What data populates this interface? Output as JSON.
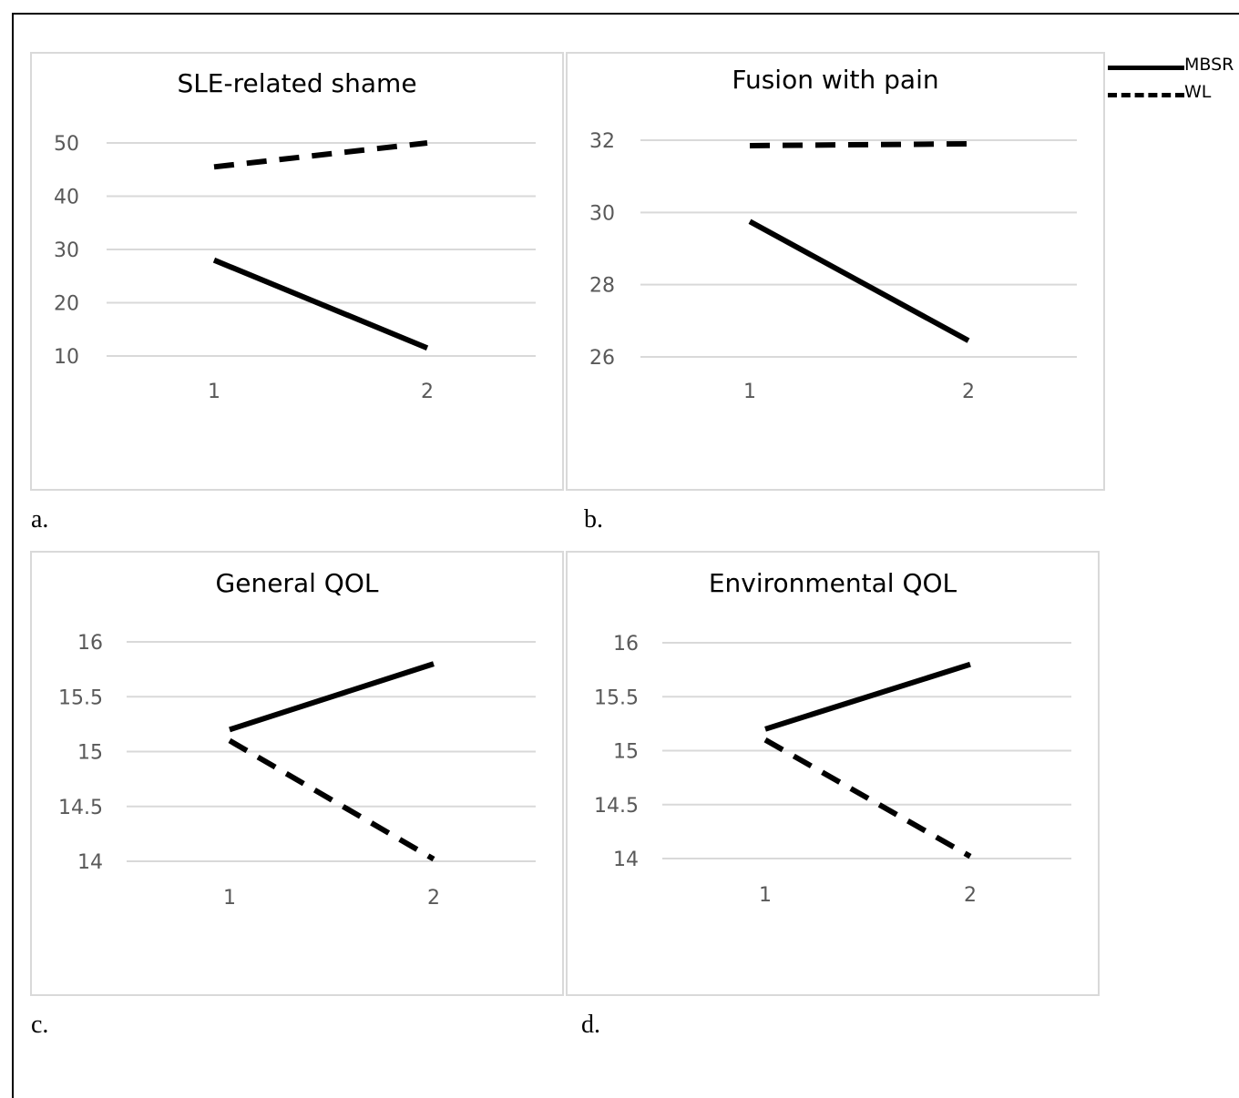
{
  "legend": [
    {
      "name": "MBSR",
      "style": "solid"
    },
    {
      "name": "WL",
      "style": "dashed"
    }
  ],
  "colors": {
    "line": "#000000",
    "grid": "#d9d9d9",
    "tick_text": "#595959",
    "title_text": "#000000"
  },
  "panel_letters": [
    "a.",
    "b.",
    "c.",
    "d."
  ],
  "chart_data": [
    {
      "type": "line",
      "title": "SLE-related shame",
      "categories": [
        "1",
        "2"
      ],
      "yticks": [
        "10",
        "20",
        "30",
        "40",
        "50"
      ],
      "ylim": [
        10,
        50
      ],
      "grid": true,
      "series": [
        {
          "name": "MBSR",
          "style": "solid",
          "values": [
            28,
            11.5
          ]
        },
        {
          "name": "WL",
          "style": "dashed",
          "values": [
            45.5,
            50
          ]
        }
      ]
    },
    {
      "type": "line",
      "title": "Fusion with pain",
      "categories": [
        "1",
        "2"
      ],
      "yticks": [
        "26",
        "28",
        "30",
        "32"
      ],
      "ylim": [
        26,
        32
      ],
      "grid": true,
      "series": [
        {
          "name": "MBSR",
          "style": "solid",
          "values": [
            29.75,
            26.45
          ]
        },
        {
          "name": "WL",
          "style": "dashed",
          "values": [
            31.85,
            31.9
          ]
        }
      ]
    },
    {
      "type": "line",
      "title": "General QOL",
      "categories": [
        "1",
        "2"
      ],
      "yticks": [
        "14",
        "14.5",
        "15",
        "15.5",
        "16"
      ],
      "ylim": [
        14,
        16
      ],
      "grid": true,
      "series": [
        {
          "name": "MBSR",
          "style": "solid",
          "values": [
            15.2,
            15.8
          ]
        },
        {
          "name": "WL",
          "style": "dashed",
          "values": [
            15.1,
            14.02
          ]
        }
      ]
    },
    {
      "type": "line",
      "title": "Environmental QOL",
      "categories": [
        "1",
        "2"
      ],
      "yticks": [
        "14",
        "14.5",
        "15",
        "15.5",
        "16"
      ],
      "ylim": [
        14,
        16
      ],
      "grid": true,
      "series": [
        {
          "name": "MBSR",
          "style": "solid",
          "values": [
            15.2,
            15.8
          ]
        },
        {
          "name": "WL",
          "style": "dashed",
          "values": [
            15.1,
            14.02
          ]
        }
      ]
    }
  ]
}
